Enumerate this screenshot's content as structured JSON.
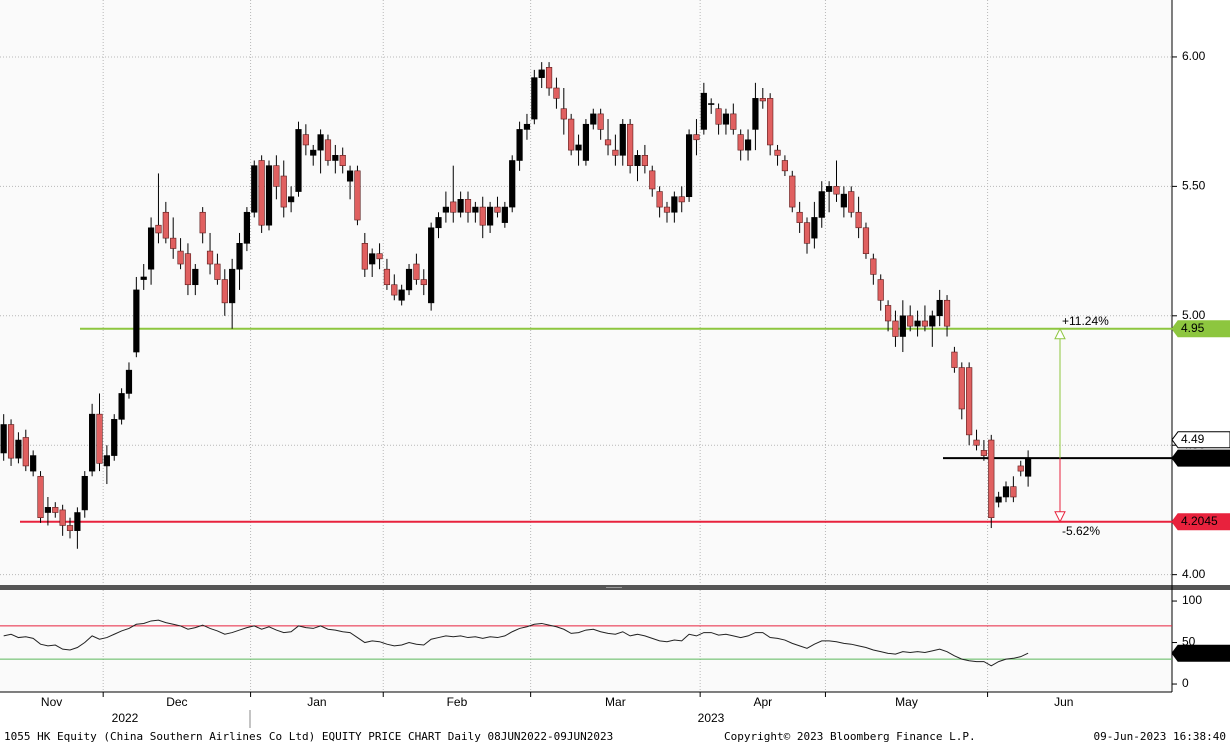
{
  "chart_data": {
    "type": "candlestick",
    "title": "1055 HK Equity (China Southern Airlines Co Ltd) EQUITY PRICE CHART  Daily 08JUN2022-09JUN2023",
    "copyright": "Copyright© 2023 Bloomberg Finance L.P.",
    "timestamp": "09-Jun-2023 16:38:40",
    "years": [
      "2022",
      "2023"
    ],
    "categories": [
      "Nov",
      null,
      null,
      null,
      null,
      null,
      null,
      null,
      null,
      null,
      null,
      null,
      null,
      null,
      "Dec",
      null,
      null,
      null,
      null,
      null,
      null,
      null,
      null,
      null,
      null,
      null,
      null,
      null,
      null,
      null,
      null,
      null,
      null,
      null,
      "Jan",
      null,
      null,
      null,
      null,
      null,
      null,
      null,
      null,
      null,
      null,
      null,
      null,
      null,
      null,
      null,
      null,
      null,
      "Feb",
      null,
      null,
      null,
      null,
      null,
      null,
      null,
      null,
      null,
      null,
      null,
      null,
      null,
      null,
      null,
      null,
      null,
      null,
      null,
      "Mar",
      null,
      null,
      null,
      null,
      null,
      null,
      null,
      null,
      null,
      null,
      null,
      null,
      null,
      null,
      null,
      null,
      null,
      null,
      null,
      null,
      null,
      null,
      "Apr",
      null,
      null,
      null,
      null,
      null,
      null,
      null,
      null,
      null,
      null,
      null,
      null,
      null,
      null,
      null,
      null,
      "May",
      null,
      null,
      null,
      null,
      null,
      null,
      null,
      null,
      null,
      null,
      null,
      null,
      null,
      null,
      null,
      null,
      null,
      null,
      null,
      null,
      null,
      "Jun",
      null,
      null,
      null,
      null,
      null
    ],
    "candles": [
      [
        4.47,
        4.62,
        4.44,
        4.58
      ],
      [
        4.58,
        4.6,
        4.42,
        4.45
      ],
      [
        4.45,
        4.55,
        4.43,
        4.52
      ],
      [
        4.53,
        4.56,
        4.4,
        4.42
      ],
      [
        4.4,
        4.48,
        4.38,
        4.46
      ],
      [
        4.38,
        4.4,
        4.2,
        4.22
      ],
      [
        4.24,
        4.3,
        4.19,
        4.26
      ],
      [
        4.26,
        4.28,
        4.22,
        4.24
      ],
      [
        4.25,
        4.27,
        4.15,
        4.19
      ],
      [
        4.19,
        4.22,
        4.14,
        4.17
      ],
      [
        4.17,
        4.26,
        4.1,
        4.24
      ],
      [
        4.25,
        4.4,
        4.22,
        4.38
      ],
      [
        4.4,
        4.66,
        4.38,
        4.62
      ],
      [
        4.62,
        4.7,
        4.4,
        4.43
      ],
      [
        4.42,
        4.5,
        4.35,
        4.46
      ],
      [
        4.46,
        4.62,
        4.44,
        4.6
      ],
      [
        4.6,
        4.72,
        4.58,
        4.7
      ],
      [
        4.7,
        4.82,
        4.68,
        4.79
      ],
      [
        4.86,
        5.15,
        4.84,
        5.1
      ],
      [
        5.14,
        5.2,
        5.1,
        5.15
      ],
      [
        5.18,
        5.38,
        5.12,
        5.34
      ],
      [
        5.35,
        5.55,
        5.28,
        5.32
      ],
      [
        5.4,
        5.44,
        5.28,
        5.3
      ],
      [
        5.3,
        5.38,
        5.22,
        5.26
      ],
      [
        5.25,
        5.3,
        5.18,
        5.2
      ],
      [
        5.24,
        5.28,
        5.08,
        5.12
      ],
      [
        5.12,
        5.2,
        5.08,
        5.18
      ],
      [
        5.4,
        5.42,
        5.28,
        5.32
      ],
      [
        5.25,
        5.32,
        5.16,
        5.2
      ],
      [
        5.2,
        5.24,
        5.12,
        5.14
      ],
      [
        5.14,
        5.18,
        5.0,
        5.05
      ],
      [
        5.05,
        5.22,
        4.95,
        5.18
      ],
      [
        5.18,
        5.32,
        5.1,
        5.28
      ],
      [
        5.28,
        5.42,
        5.25,
        5.4
      ],
      [
        5.4,
        5.6,
        5.38,
        5.58
      ],
      [
        5.6,
        5.62,
        5.32,
        5.35
      ],
      [
        5.35,
        5.6,
        5.33,
        5.58
      ],
      [
        5.58,
        5.62,
        5.45,
        5.5
      ],
      [
        5.54,
        5.6,
        5.38,
        5.42
      ],
      [
        5.44,
        5.5,
        5.4,
        5.46
      ],
      [
        5.48,
        5.75,
        5.46,
        5.72
      ],
      [
        5.7,
        5.74,
        5.62,
        5.66
      ],
      [
        5.62,
        5.66,
        5.58,
        5.64
      ],
      [
        5.64,
        5.72,
        5.55,
        5.7
      ],
      [
        5.68,
        5.7,
        5.58,
        5.6
      ],
      [
        5.6,
        5.66,
        5.55,
        5.62
      ],
      [
        5.62,
        5.65,
        5.55,
        5.58
      ],
      [
        5.52,
        5.58,
        5.45,
        5.56
      ],
      [
        5.56,
        5.58,
        5.35,
        5.37
      ],
      [
        5.28,
        5.32,
        5.15,
        5.18
      ],
      [
        5.2,
        5.26,
        5.15,
        5.24
      ],
      [
        5.24,
        5.28,
        5.18,
        5.22
      ],
      [
        5.18,
        5.22,
        5.1,
        5.12
      ],
      [
        5.12,
        5.16,
        5.06,
        5.08
      ],
      [
        5.06,
        5.12,
        5.04,
        5.1
      ],
      [
        5.1,
        5.2,
        5.08,
        5.18
      ],
      [
        5.2,
        5.24,
        5.12,
        5.14
      ],
      [
        5.14,
        5.18,
        5.08,
        5.12
      ],
      [
        5.05,
        5.36,
        5.02,
        5.34
      ],
      [
        5.34,
        5.4,
        5.3,
        5.38
      ],
      [
        5.4,
        5.48,
        5.36,
        5.42
      ],
      [
        5.44,
        5.58,
        5.36,
        5.4
      ],
      [
        5.4,
        5.48,
        5.38,
        5.45
      ],
      [
        5.45,
        5.48,
        5.36,
        5.4
      ],
      [
        5.4,
        5.44,
        5.36,
        5.42
      ],
      [
        5.42,
        5.46,
        5.3,
        5.35
      ],
      [
        5.35,
        5.44,
        5.32,
        5.42
      ],
      [
        5.42,
        5.46,
        5.38,
        5.4
      ],
      [
        5.36,
        5.44,
        5.34,
        5.42
      ],
      [
        5.42,
        5.62,
        5.4,
        5.6
      ],
      [
        5.6,
        5.75,
        5.56,
        5.72
      ],
      [
        5.72,
        5.78,
        5.68,
        5.74
      ],
      [
        5.76,
        5.95,
        5.74,
        5.92
      ],
      [
        5.92,
        5.98,
        5.88,
        5.95
      ],
      [
        5.96,
        5.98,
        5.85,
        5.88
      ],
      [
        5.88,
        5.92,
        5.8,
        5.84
      ],
      [
        5.8,
        5.88,
        5.7,
        5.76
      ],
      [
        5.76,
        5.78,
        5.62,
        5.64
      ],
      [
        5.64,
        5.7,
        5.58,
        5.66
      ],
      [
        5.6,
        5.76,
        5.58,
        5.74
      ],
      [
        5.74,
        5.8,
        5.72,
        5.78
      ],
      [
        5.78,
        5.8,
        5.68,
        5.72
      ],
      [
        5.68,
        5.76,
        5.62,
        5.66
      ],
      [
        5.64,
        5.7,
        5.58,
        5.62
      ],
      [
        5.62,
        5.76,
        5.58,
        5.74
      ],
      [
        5.74,
        5.76,
        5.55,
        5.58
      ],
      [
        5.58,
        5.64,
        5.52,
        5.62
      ],
      [
        5.62,
        5.66,
        5.55,
        5.58
      ],
      [
        5.56,
        5.58,
        5.46,
        5.49
      ],
      [
        5.48,
        5.5,
        5.38,
        5.42
      ],
      [
        5.42,
        5.44,
        5.36,
        5.4
      ],
      [
        5.4,
        5.48,
        5.36,
        5.46
      ],
      [
        5.46,
        5.5,
        5.4,
        5.44
      ],
      [
        5.46,
        5.72,
        5.44,
        5.7
      ],
      [
        5.7,
        5.76,
        5.62,
        5.68
      ],
      [
        5.72,
        5.9,
        5.7,
        5.86
      ],
      [
        5.82,
        5.84,
        5.78,
        5.82
      ],
      [
        5.8,
        5.82,
        5.7,
        5.74
      ],
      [
        5.74,
        5.8,
        5.7,
        5.78
      ],
      [
        5.78,
        5.82,
        5.7,
        5.72
      ],
      [
        5.7,
        5.72,
        5.6,
        5.64
      ],
      [
        5.64,
        5.72,
        5.6,
        5.68
      ],
      [
        5.72,
        5.9,
        5.64,
        5.84
      ],
      [
        5.84,
        5.88,
        5.8,
        5.83
      ],
      [
        5.84,
        5.86,
        5.62,
        5.66
      ],
      [
        5.64,
        5.66,
        5.58,
        5.62
      ],
      [
        5.6,
        5.62,
        5.54,
        5.56
      ],
      [
        5.54,
        5.56,
        5.4,
        5.42
      ],
      [
        5.4,
        5.44,
        5.32,
        5.36
      ],
      [
        5.36,
        5.38,
        5.24,
        5.28
      ],
      [
        5.3,
        5.44,
        5.26,
        5.38
      ],
      [
        5.38,
        5.52,
        5.34,
        5.48
      ],
      [
        5.48,
        5.52,
        5.4,
        5.5
      ],
      [
        5.5,
        5.6,
        5.44,
        5.47
      ],
      [
        5.42,
        5.5,
        5.38,
        5.47
      ],
      [
        5.48,
        5.5,
        5.38,
        5.4
      ],
      [
        5.4,
        5.46,
        5.3,
        5.34
      ],
      [
        5.34,
        5.36,
        5.22,
        5.24
      ],
      [
        5.22,
        5.24,
        5.12,
        5.16
      ],
      [
        5.14,
        5.16,
        5.02,
        5.06
      ],
      [
        5.04,
        5.06,
        4.94,
        4.98
      ],
      [
        4.98,
        5.02,
        4.88,
        4.92
      ],
      [
        4.92,
        5.06,
        4.86,
        5.0
      ],
      [
        5.0,
        5.04,
        4.94,
        4.96
      ],
      [
        4.96,
        5.02,
        4.92,
        4.98
      ],
      [
        4.98,
        5.04,
        4.94,
        4.96
      ],
      [
        4.96,
        5.02,
        4.88,
        5.0
      ],
      [
        5.0,
        5.1,
        4.96,
        5.06
      ],
      [
        5.06,
        5.08,
        4.92,
        4.96
      ],
      [
        4.86,
        4.88,
        4.78,
        4.8
      ],
      [
        4.8,
        4.82,
        4.6,
        4.64
      ],
      [
        4.8,
        4.82,
        4.5,
        4.54
      ],
      [
        4.52,
        4.56,
        4.48,
        4.5
      ],
      [
        4.48,
        4.52,
        4.44,
        4.46
      ],
      [
        4.52,
        4.54,
        4.18,
        4.22
      ],
      [
        4.28,
        4.32,
        4.26,
        4.3
      ],
      [
        4.3,
        4.36,
        4.28,
        4.34
      ],
      [
        4.34,
        4.38,
        4.28,
        4.3
      ],
      [
        4.42,
        4.44,
        4.38,
        4.4
      ],
      [
        4.38,
        4.48,
        4.34,
        4.45
      ]
    ],
    "up_color": "#000000",
    "down_color": "#e06060",
    "ylim": [
      3.96,
      6.22
    ],
    "yticks": [
      {
        "value": 4,
        "label": "4.00"
      },
      {
        "value": 4.5,
        "label": "4.50"
      },
      {
        "value": 5,
        "label": "5.00"
      },
      {
        "value": 5.5,
        "label": "5.50"
      },
      {
        "value": 6,
        "label": "6.00"
      }
    ],
    "grid": true,
    "high_tag": 4.49,
    "levels": [
      {
        "value": 4.95,
        "color": "#8dc63f"
      },
      {
        "value": 4.45,
        "color": "#000000"
      },
      {
        "value": 4.2045,
        "color": "#e8223d"
      }
    ],
    "changes": [
      {
        "value": 11.24,
        "label": "+11.24%",
        "color": "#8dc63f"
      },
      {
        "value": -5.62,
        "label": "-5.62%",
        "color": "#e8223d"
      }
    ],
    "rsi": {
      "values": [
        58,
        60,
        56,
        57,
        55,
        48,
        46,
        47,
        42,
        41,
        44,
        50,
        58,
        54,
        56,
        60,
        64,
        67,
        72,
        73,
        76,
        77,
        74,
        72,
        70,
        66,
        68,
        71,
        67,
        64,
        60,
        62,
        65,
        68,
        70,
        66,
        69,
        65,
        62,
        63,
        70,
        68,
        67,
        70,
        66,
        65,
        63,
        62,
        56,
        50,
        52,
        51,
        48,
        46,
        47,
        50,
        48,
        47,
        54,
        56,
        58,
        57,
        58,
        56,
        57,
        55,
        57,
        56,
        58,
        63,
        67,
        69,
        72,
        73,
        71,
        69,
        66,
        61,
        62,
        65,
        66,
        63,
        61,
        60,
        63,
        58,
        60,
        58,
        55,
        52,
        51,
        53,
        52,
        60,
        58,
        62,
        62,
        59,
        60,
        58,
        56,
        58,
        62,
        62,
        56,
        55,
        53,
        49,
        46,
        43,
        48,
        52,
        52,
        51,
        49,
        48,
        46,
        44,
        41,
        39,
        37,
        36,
        39,
        38,
        39,
        38,
        40,
        42,
        39,
        34,
        30,
        28,
        27,
        27,
        22,
        27,
        30,
        31,
        33,
        37.1558
      ],
      "ylim": [
        -9.6,
        113.3
      ],
      "yticks": [
        0,
        50,
        100
      ],
      "levels": [
        {
          "value": 70,
          "color": "#e8223d"
        },
        {
          "value": 30,
          "color": "#5cb85c"
        }
      ],
      "last": 37.1558
    }
  }
}
